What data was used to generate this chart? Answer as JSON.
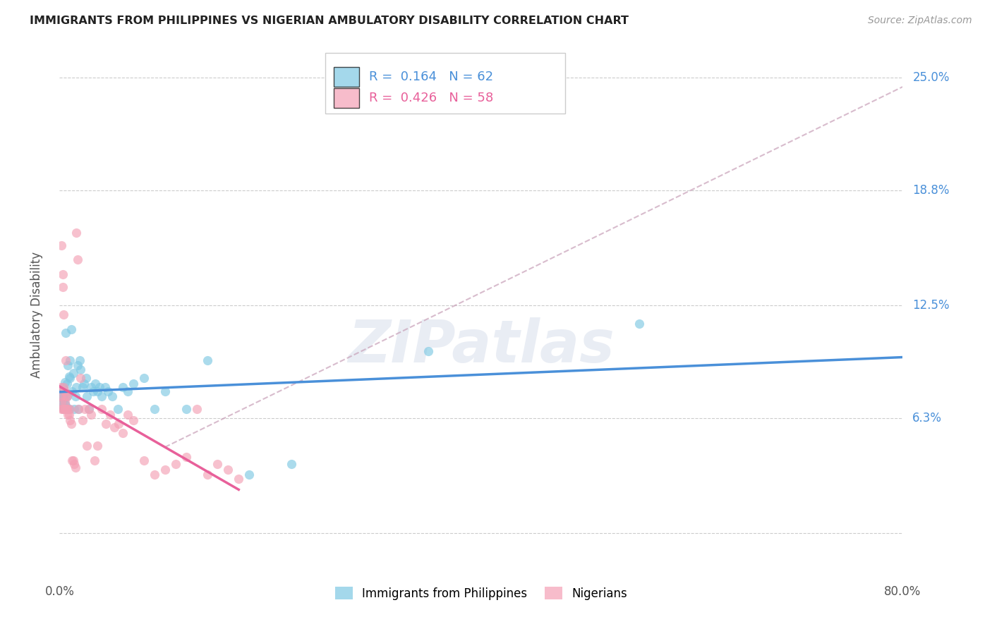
{
  "title": "IMMIGRANTS FROM PHILIPPINES VS NIGERIAN AMBULATORY DISABILITY CORRELATION CHART",
  "source": "Source: ZipAtlas.com",
  "ylabel": "Ambulatory Disability",
  "ytick_vals": [
    0.0,
    0.063,
    0.125,
    0.188,
    0.25
  ],
  "ytick_labels": [
    "",
    "6.3%",
    "12.5%",
    "18.8%",
    "25.0%"
  ],
  "xlim": [
    0.0,
    0.8
  ],
  "ylim": [
    -0.025,
    0.265
  ],
  "legend1_r": "0.164",
  "legend1_n": "62",
  "legend2_r": "0.426",
  "legend2_n": "58",
  "blue_color": "#7ec8e3",
  "pink_color": "#f4a0b5",
  "blue_line_color": "#4a90d9",
  "pink_line_color": "#e8609a",
  "dashed_line_color": "#c8a0b8",
  "watermark_text": "ZIPatlas",
  "philippines_x": [
    0.001,
    0.002,
    0.002,
    0.003,
    0.003,
    0.003,
    0.004,
    0.004,
    0.004,
    0.005,
    0.005,
    0.005,
    0.005,
    0.006,
    0.006,
    0.006,
    0.007,
    0.007,
    0.007,
    0.008,
    0.008,
    0.009,
    0.009,
    0.01,
    0.01,
    0.011,
    0.012,
    0.013,
    0.014,
    0.015,
    0.016,
    0.017,
    0.018,
    0.019,
    0.02,
    0.022,
    0.023,
    0.025,
    0.026,
    0.028,
    0.03,
    0.032,
    0.034,
    0.036,
    0.038,
    0.04,
    0.043,
    0.046,
    0.05,
    0.055,
    0.06,
    0.065,
    0.07,
    0.08,
    0.09,
    0.1,
    0.12,
    0.14,
    0.18,
    0.22,
    0.35,
    0.55
  ],
  "philippines_y": [
    0.075,
    0.072,
    0.078,
    0.07,
    0.074,
    0.08,
    0.068,
    0.073,
    0.079,
    0.071,
    0.077,
    0.068,
    0.083,
    0.07,
    0.075,
    0.11,
    0.068,
    0.082,
    0.075,
    0.068,
    0.092,
    0.068,
    0.086,
    0.095,
    0.085,
    0.112,
    0.078,
    0.088,
    0.068,
    0.075,
    0.08,
    0.092,
    0.068,
    0.095,
    0.09,
    0.08,
    0.082,
    0.085,
    0.075,
    0.068,
    0.08,
    0.078,
    0.082,
    0.078,
    0.08,
    0.075,
    0.08,
    0.078,
    0.075,
    0.068,
    0.08,
    0.078,
    0.082,
    0.085,
    0.068,
    0.078,
    0.068,
    0.095,
    0.032,
    0.038,
    0.1,
    0.115
  ],
  "nigerian_x": [
    0.001,
    0.001,
    0.002,
    0.002,
    0.002,
    0.003,
    0.003,
    0.003,
    0.004,
    0.004,
    0.004,
    0.005,
    0.005,
    0.005,
    0.006,
    0.006,
    0.006,
    0.007,
    0.007,
    0.008,
    0.008,
    0.009,
    0.01,
    0.01,
    0.011,
    0.012,
    0.013,
    0.014,
    0.015,
    0.016,
    0.017,
    0.018,
    0.02,
    0.022,
    0.024,
    0.026,
    0.028,
    0.03,
    0.033,
    0.036,
    0.04,
    0.044,
    0.048,
    0.052,
    0.056,
    0.06,
    0.065,
    0.07,
    0.08,
    0.09,
    0.1,
    0.11,
    0.12,
    0.13,
    0.14,
    0.15,
    0.16,
    0.17
  ],
  "nigerian_y": [
    0.075,
    0.08,
    0.072,
    0.158,
    0.068,
    0.142,
    0.135,
    0.068,
    0.12,
    0.068,
    0.08,
    0.072,
    0.068,
    0.078,
    0.095,
    0.068,
    0.075,
    0.068,
    0.075,
    0.065,
    0.068,
    0.065,
    0.062,
    0.068,
    0.06,
    0.04,
    0.04,
    0.038,
    0.036,
    0.165,
    0.15,
    0.068,
    0.085,
    0.062,
    0.068,
    0.048,
    0.068,
    0.065,
    0.04,
    0.048,
    0.068,
    0.06,
    0.065,
    0.058,
    0.06,
    0.055,
    0.065,
    0.062,
    0.04,
    0.032,
    0.035,
    0.038,
    0.042,
    0.068,
    0.032,
    0.038,
    0.035,
    0.03
  ]
}
